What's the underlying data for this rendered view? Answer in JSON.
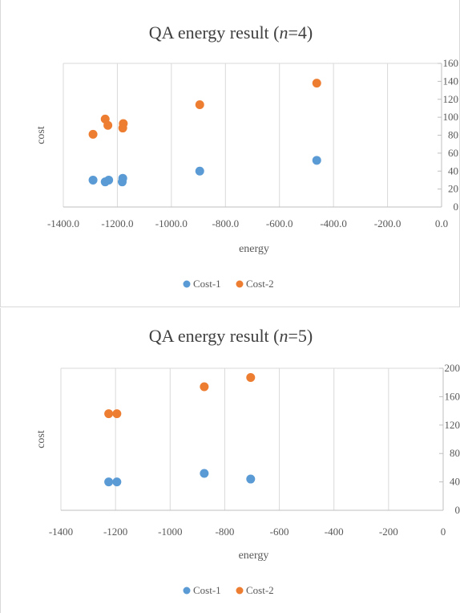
{
  "chart_data": [
    {
      "type": "scatter",
      "title": "QA energy result (",
      "title_var": "n",
      "title_suffix": "=4)",
      "xlabel": "energy",
      "ylabel": "cost",
      "xlim": [
        -1400,
        0
      ],
      "ylim": [
        0,
        160
      ],
      "xticks": [
        -1400,
        -1200,
        -1000,
        -800,
        -600,
        -400,
        -200,
        0
      ],
      "xtick_labels": [
        "-1400.0",
        "-1200.0",
        "-1000.0",
        "-800.0",
        "-600.0",
        "-400.0",
        "-200.0",
        "0.0"
      ],
      "yticks": [
        0,
        20,
        40,
        60,
        80,
        100,
        120,
        140,
        160
      ],
      "ytick_labels": [
        "0",
        "20",
        "40",
        "60",
        "80",
        "100",
        "120",
        "140",
        "160"
      ],
      "y_axis_side": "right",
      "grid": "vertical",
      "legend_position": "bottom",
      "series": [
        {
          "name": "Cost-1",
          "color": "#5b9bd5",
          "points": [
            [
              -1290,
              30
            ],
            [
              -1245,
              28
            ],
            [
              -1232,
              30
            ],
            [
              -1182,
              28
            ],
            [
              -1180,
              32
            ],
            [
              -895,
              40
            ],
            [
              -462,
              52
            ]
          ]
        },
        {
          "name": "Cost-2",
          "color": "#ed7d31",
          "points": [
            [
              -1290,
              81
            ],
            [
              -1245,
              98
            ],
            [
              -1235,
              91
            ],
            [
              -1180,
              88
            ],
            [
              -1178,
              93
            ],
            [
              -895,
              114
            ],
            [
              -462,
              138
            ]
          ]
        }
      ]
    },
    {
      "type": "scatter",
      "title": "QA energy result (",
      "title_var": "n",
      "title_suffix": "=5)",
      "xlabel": "energy",
      "ylabel": "cost",
      "xlim": [
        -1400,
        0
      ],
      "ylim": [
        0,
        200
      ],
      "xticks": [
        -1400,
        -1200,
        -1000,
        -800,
        -600,
        -400,
        -200,
        0
      ],
      "xtick_labels": [
        "-1400",
        "-1200",
        "-1000",
        "-800",
        "-600",
        "-400",
        "-200",
        "0"
      ],
      "yticks": [
        0,
        40,
        80,
        120,
        160,
        200
      ],
      "ytick_labels": [
        "0",
        "40",
        "80",
        "120",
        "160",
        "200"
      ],
      "y_axis_side": "right",
      "grid": "vertical",
      "legend_position": "bottom",
      "series": [
        {
          "name": "Cost-1",
          "color": "#5b9bd5",
          "points": [
            [
              -1225,
              40
            ],
            [
              -1195,
              40
            ],
            [
              -875,
              52
            ],
            [
              -705,
              44
            ]
          ]
        },
        {
          "name": "Cost-2",
          "color": "#ed7d31",
          "points": [
            [
              -1225,
              136
            ],
            [
              -1195,
              136
            ],
            [
              -875,
              174
            ],
            [
              -705,
              187
            ]
          ]
        }
      ]
    }
  ]
}
